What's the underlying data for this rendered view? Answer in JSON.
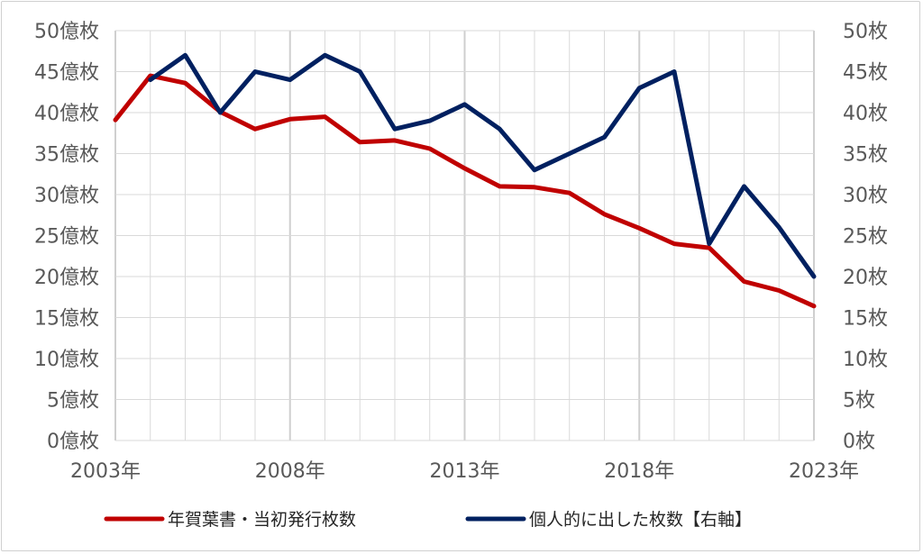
{
  "chart_data": {
    "type": "line",
    "title": "",
    "xlabel": "",
    "ylabel": "",
    "x": [
      2003,
      2004,
      2005,
      2006,
      2007,
      2008,
      2009,
      2010,
      2011,
      2012,
      2013,
      2014,
      2015,
      2016,
      2017,
      2018,
      2019,
      2020,
      2021,
      2022,
      2023
    ],
    "x_tick_labels": [
      "2003年",
      "2008年",
      "2013年",
      "2018年",
      "2023年"
    ],
    "x_tick_values": [
      2003,
      2008,
      2013,
      2018,
      2023
    ],
    "y_left": {
      "range": [
        0,
        50
      ],
      "ticks": [
        0,
        5,
        10,
        15,
        20,
        25,
        30,
        35,
        40,
        45,
        50
      ],
      "tick_labels": [
        "0億枚",
        "5億枚",
        "10億枚",
        "15億枚",
        "20億枚",
        "25億枚",
        "30億枚",
        "35億枚",
        "40億枚",
        "45億枚",
        "50億枚"
      ]
    },
    "y_right": {
      "range": [
        0,
        50
      ],
      "ticks": [
        0,
        5,
        10,
        15,
        20,
        25,
        30,
        35,
        40,
        45,
        50
      ],
      "tick_labels": [
        "0枚",
        "5枚",
        "10枚",
        "15枚",
        "20枚",
        "25枚",
        "30枚",
        "35枚",
        "40枚",
        "45枚",
        "50枚"
      ]
    },
    "grid": true,
    "legend_position": "bottom",
    "series": [
      {
        "name": "年賀葉書・当初発行枚数",
        "axis": "left",
        "color": "#c00000",
        "x": [
          2003,
          2004,
          2005,
          2006,
          2007,
          2008,
          2009,
          2010,
          2011,
          2012,
          2013,
          2014,
          2015,
          2016,
          2017,
          2018,
          2019,
          2020,
          2021,
          2022,
          2023
        ],
        "values": [
          39.1,
          44.5,
          43.6,
          40.1,
          38.0,
          39.2,
          39.5,
          36.4,
          36.6,
          35.6,
          33.2,
          31.0,
          30.9,
          30.2,
          27.6,
          25.9,
          24.0,
          23.5,
          19.4,
          18.3,
          16.4
        ]
      },
      {
        "name": "個人的に出した枚数【右軸】",
        "axis": "right",
        "color": "#002060",
        "x": [
          2004,
          2005,
          2006,
          2007,
          2008,
          2009,
          2010,
          2011,
          2012,
          2013,
          2014,
          2015,
          2016,
          2017,
          2018,
          2019,
          2020,
          2021,
          2022,
          2023
        ],
        "values": [
          44,
          47,
          40,
          45,
          44,
          47,
          45,
          38,
          39,
          41,
          38,
          33,
          35,
          37,
          43,
          45,
          24,
          31,
          26,
          20
        ]
      }
    ]
  }
}
